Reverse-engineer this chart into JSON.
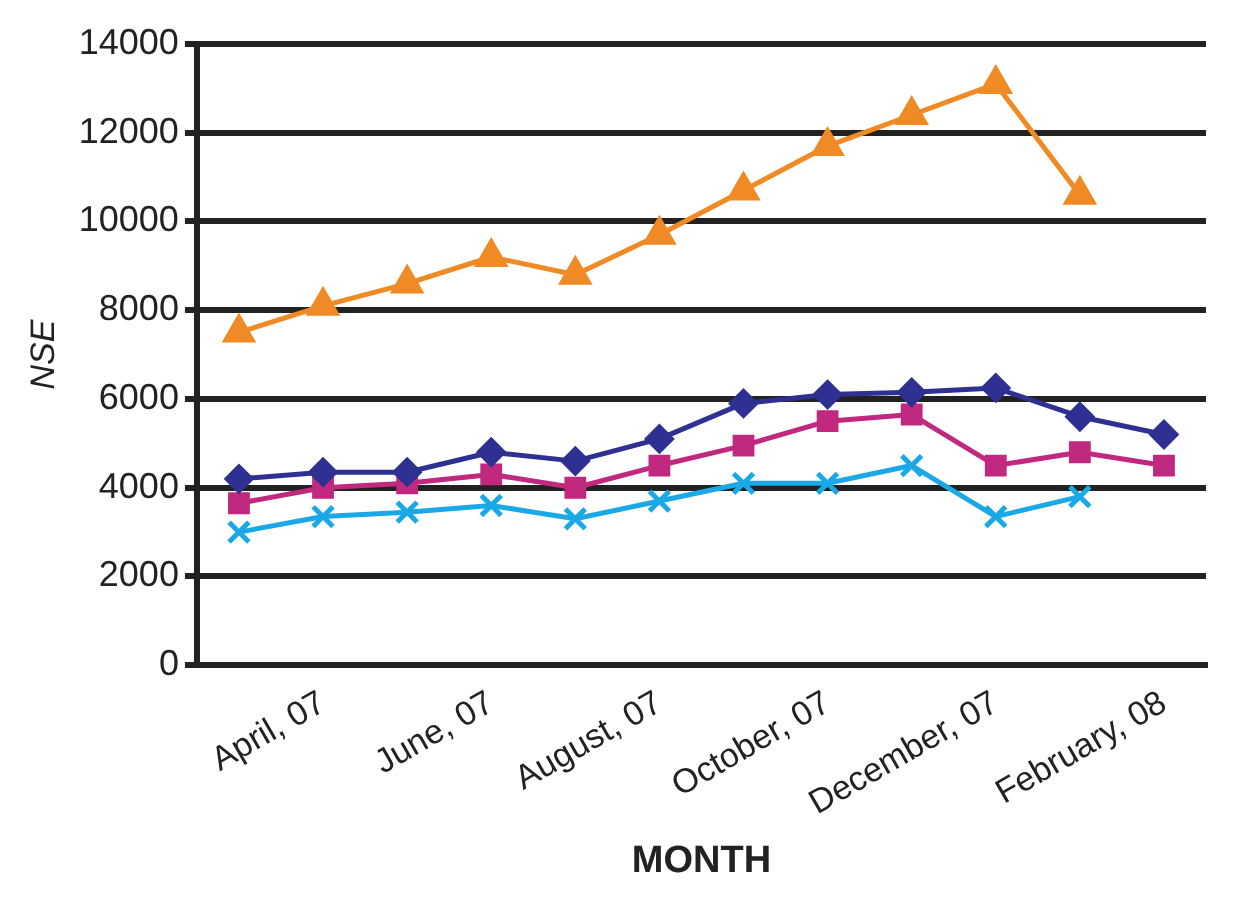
{
  "chart_data": {
    "type": "line",
    "xlabel": "MONTH",
    "ylabel": "NSE",
    "categories": [
      null,
      "April, 07",
      null,
      "June, 07",
      null,
      "August, 07",
      null,
      "October, 07",
      null,
      "December, 07",
      null,
      "February, 08"
    ],
    "series": [
      {
        "color": "#2e3192",
        "marker": "diamond",
        "values": [
          4200,
          4350,
          4350,
          4800,
          4600,
          5100,
          5900,
          6100,
          6150,
          6250,
          5600,
          5200
        ]
      },
      {
        "color": "#c0297f",
        "marker": "square",
        "values": [
          3650,
          4000,
          4100,
          4300,
          4000,
          4500,
          4950,
          5500,
          5650,
          4500,
          4800,
          4500
        ]
      },
      {
        "color": "#f08a24",
        "marker": "triangle",
        "values": [
          7500,
          8100,
          8600,
          9200,
          8800,
          9700,
          10700,
          11700,
          12400,
          13100,
          10600,
          null
        ]
      },
      {
        "color": "#1aa9e6",
        "marker": "cross",
        "values": [
          3000,
          3350,
          3450,
          3600,
          3300,
          3700,
          4100,
          4100,
          4500,
          3350,
          3800,
          null
        ]
      }
    ],
    "ylim": [
      0,
      14000
    ],
    "yticks": [
      0,
      2000,
      4000,
      6000,
      8000,
      10000,
      12000,
      14000
    ],
    "grid": "y",
    "legend": false
  }
}
